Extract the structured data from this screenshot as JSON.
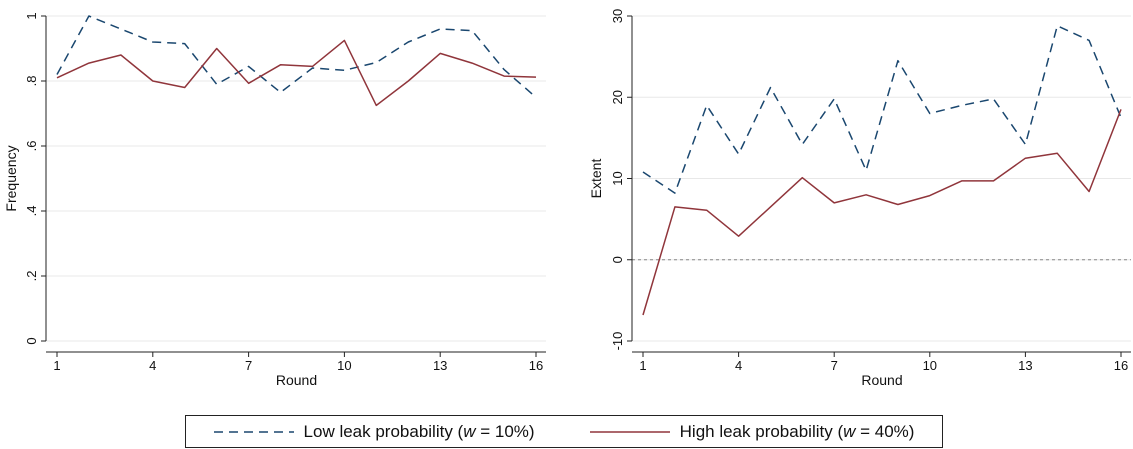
{
  "colors": {
    "low": "#1a476f",
    "high": "#90353b",
    "grid": "#e8e8e8",
    "zero": "#888888"
  },
  "chart_data": [
    {
      "type": "line",
      "id": "frequency",
      "xlabel": "Round",
      "ylabel": "Frequency",
      "x": [
        1,
        2,
        3,
        4,
        5,
        6,
        7,
        8,
        9,
        10,
        11,
        12,
        13,
        14,
        15,
        16
      ],
      "xticks": [
        1,
        4,
        7,
        10,
        13,
        16
      ],
      "xlim": [
        1,
        16
      ],
      "ylim": [
        0,
        1
      ],
      "yticks": [
        0,
        0.2,
        0.4,
        0.6,
        0.8,
        1
      ],
      "yticklabels": [
        "0",
        ".2",
        ".4",
        ".6",
        ".8",
        "1"
      ],
      "series": [
        {
          "key": "low",
          "values": [
            0.82,
            1.0,
            0.96,
            0.92,
            0.915,
            0.79,
            0.845,
            0.765,
            0.84,
            0.833,
            0.857,
            0.92,
            0.96,
            0.955,
            0.835,
            0.75
          ]
        },
        {
          "key": "high",
          "values": [
            0.81,
            0.855,
            0.88,
            0.8,
            0.78,
            0.9,
            0.793,
            0.85,
            0.845,
            0.925,
            0.725,
            0.8,
            0.885,
            0.855,
            0.815,
            0.812
          ]
        }
      ],
      "zero_line": false
    },
    {
      "type": "line",
      "id": "extent",
      "xlabel": "Round",
      "ylabel": "Extent",
      "x": [
        1,
        2,
        3,
        4,
        5,
        6,
        7,
        8,
        9,
        10,
        11,
        12,
        13,
        14,
        15,
        16
      ],
      "xticks": [
        1,
        4,
        7,
        10,
        13,
        16
      ],
      "xlim": [
        1,
        16
      ],
      "ylim": [
        -10,
        30
      ],
      "yticks": [
        -10,
        0,
        10,
        20,
        30
      ],
      "yticklabels": [
        "-10",
        "0",
        "10",
        "20",
        "30"
      ],
      "series": [
        {
          "key": "low",
          "values": [
            10.8,
            8.2,
            19.0,
            13.0,
            21.2,
            14.2,
            19.8,
            11.0,
            24.5,
            18.0,
            19.0,
            19.8,
            14.2,
            28.8,
            27.0,
            17.5
          ]
        },
        {
          "key": "high",
          "values": [
            -6.8,
            6.5,
            6.1,
            2.9,
            6.5,
            10.1,
            7.0,
            8.0,
            6.8,
            7.9,
            9.7,
            9.7,
            12.5,
            13.1,
            8.4,
            18.5
          ]
        }
      ],
      "zero_line": true
    }
  ],
  "legend": {
    "entries": [
      {
        "key": "low",
        "prefix": "Low leak probability (",
        "var": "w",
        "suffix": " = 10%)"
      },
      {
        "key": "high",
        "prefix": "High leak probability (",
        "var": "w",
        "suffix": " = 40%)"
      }
    ]
  }
}
